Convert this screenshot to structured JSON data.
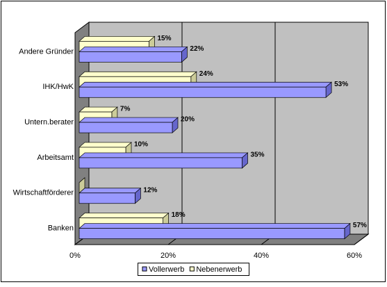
{
  "chart_data": {
    "type": "bar3d_horizontal",
    "categories": [
      "Andere Gründer",
      "IHK/HwK",
      "Untern.berater",
      "Arbeitsamt",
      "Wirtschaftförderer",
      "Banken"
    ],
    "series": [
      {
        "name": "Nebenerwerb",
        "color": "#ffffcc",
        "values": [
          15,
          24,
          7,
          10,
          0,
          18
        ],
        "value_labels": [
          "15%",
          "24%",
          "7%",
          "10%",
          null,
          "18%"
        ]
      },
      {
        "name": "Vollerwerb",
        "color": "#9999ff",
        "values": [
          22,
          53,
          20,
          35,
          12,
          57
        ],
        "value_labels": [
          "22%",
          "53%",
          "20%",
          "35%",
          "12%",
          "57%"
        ]
      }
    ],
    "legend_order": [
      1,
      0
    ],
    "xlim": [
      0,
      60
    ],
    "xticks": [
      {
        "value": 0,
        "label": "0%"
      },
      {
        "value": 20,
        "label": "20%"
      },
      {
        "value": 40,
        "label": "40%"
      },
      {
        "value": 60,
        "label": "60%"
      }
    ],
    "grid": true
  }
}
